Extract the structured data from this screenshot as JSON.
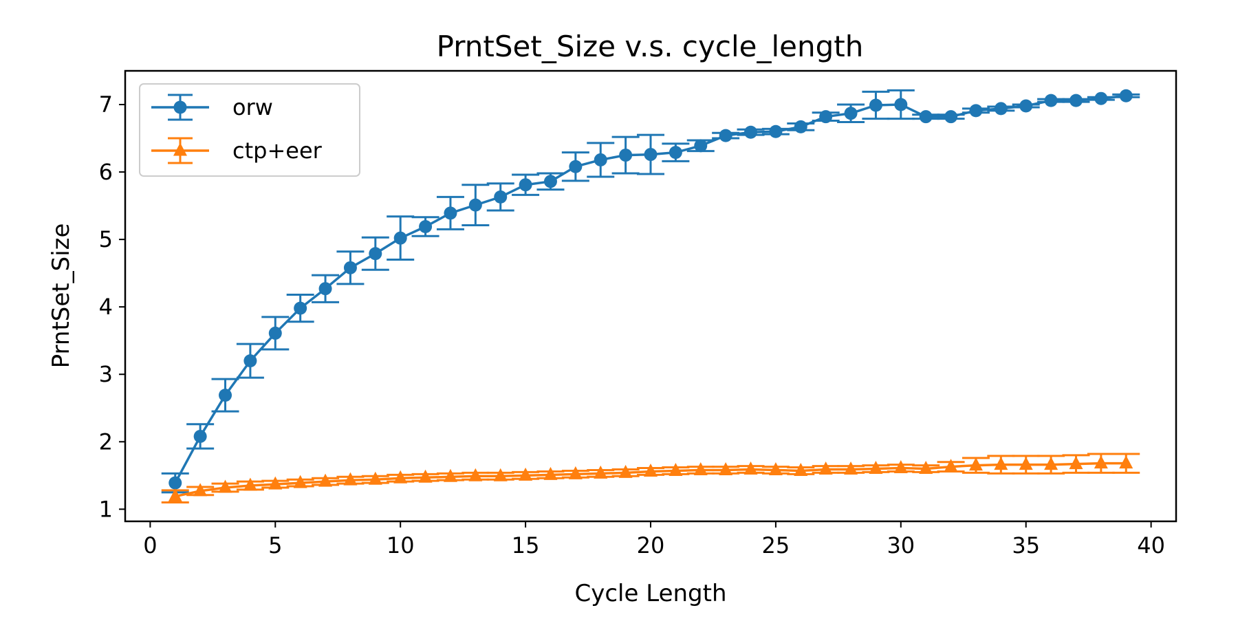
{
  "chart_data": {
    "type": "line",
    "title": "PrntSet_Size v.s. cycle_length",
    "xlabel": "Cycle Length",
    "ylabel": "PrntSet_Size",
    "xlim": [
      -1,
      41
    ],
    "ylim": [
      0.82,
      7.5
    ],
    "xticks": [
      0,
      5,
      10,
      15,
      20,
      25,
      30,
      35,
      40
    ],
    "yticks": [
      1,
      2,
      3,
      4,
      5,
      6,
      7
    ],
    "grid": false,
    "legend_position": "top-left",
    "x": [
      1,
      2,
      3,
      4,
      5,
      6,
      7,
      8,
      9,
      10,
      11,
      12,
      13,
      14,
      15,
      16,
      17,
      18,
      19,
      20,
      21,
      22,
      23,
      24,
      25,
      26,
      27,
      28,
      29,
      30,
      31,
      32,
      33,
      34,
      35,
      36,
      37,
      38,
      39
    ],
    "series": [
      {
        "name": "orw",
        "color": "#1f77b4",
        "marker": "circle",
        "values": [
          1.39,
          2.08,
          2.69,
          3.2,
          3.61,
          3.98,
          4.27,
          4.58,
          4.79,
          5.02,
          5.19,
          5.39,
          5.51,
          5.63,
          5.81,
          5.86,
          6.08,
          6.18,
          6.25,
          6.26,
          6.29,
          6.39,
          6.54,
          6.59,
          6.6,
          6.67,
          6.82,
          6.87,
          6.99,
          7.0,
          6.82,
          6.82,
          6.91,
          6.94,
          6.98,
          7.06,
          7.06,
          7.09,
          7.13
        ],
        "errors": [
          0.14,
          0.18,
          0.24,
          0.25,
          0.24,
          0.2,
          0.2,
          0.24,
          0.24,
          0.32,
          0.14,
          0.24,
          0.3,
          0.2,
          0.15,
          0.12,
          0.21,
          0.25,
          0.27,
          0.29,
          0.13,
          0.08,
          0.04,
          0.04,
          0.04,
          0.05,
          0.06,
          0.13,
          0.2,
          0.21,
          0.03,
          0.03,
          0.03,
          0.03,
          0.02,
          0.02,
          0.02,
          0.02,
          0.02
        ]
      },
      {
        "name": "ctp+eer",
        "color": "#ff7f0e",
        "marker": "triangle",
        "values": [
          1.19,
          1.27,
          1.32,
          1.35,
          1.37,
          1.39,
          1.41,
          1.43,
          1.44,
          1.46,
          1.47,
          1.48,
          1.49,
          1.49,
          1.5,
          1.51,
          1.52,
          1.53,
          1.54,
          1.56,
          1.57,
          1.58,
          1.58,
          1.59,
          1.58,
          1.57,
          1.59,
          1.59,
          1.6,
          1.61,
          1.6,
          1.63,
          1.65,
          1.66,
          1.66,
          1.66,
          1.67,
          1.68,
          1.68
        ],
        "errors": [
          0.09,
          0.06,
          0.06,
          0.06,
          0.05,
          0.05,
          0.05,
          0.05,
          0.05,
          0.05,
          0.05,
          0.05,
          0.05,
          0.05,
          0.05,
          0.05,
          0.05,
          0.05,
          0.05,
          0.05,
          0.05,
          0.05,
          0.05,
          0.05,
          0.05,
          0.05,
          0.05,
          0.05,
          0.05,
          0.05,
          0.05,
          0.07,
          0.11,
          0.13,
          0.13,
          0.13,
          0.13,
          0.14,
          0.14
        ]
      }
    ]
  }
}
